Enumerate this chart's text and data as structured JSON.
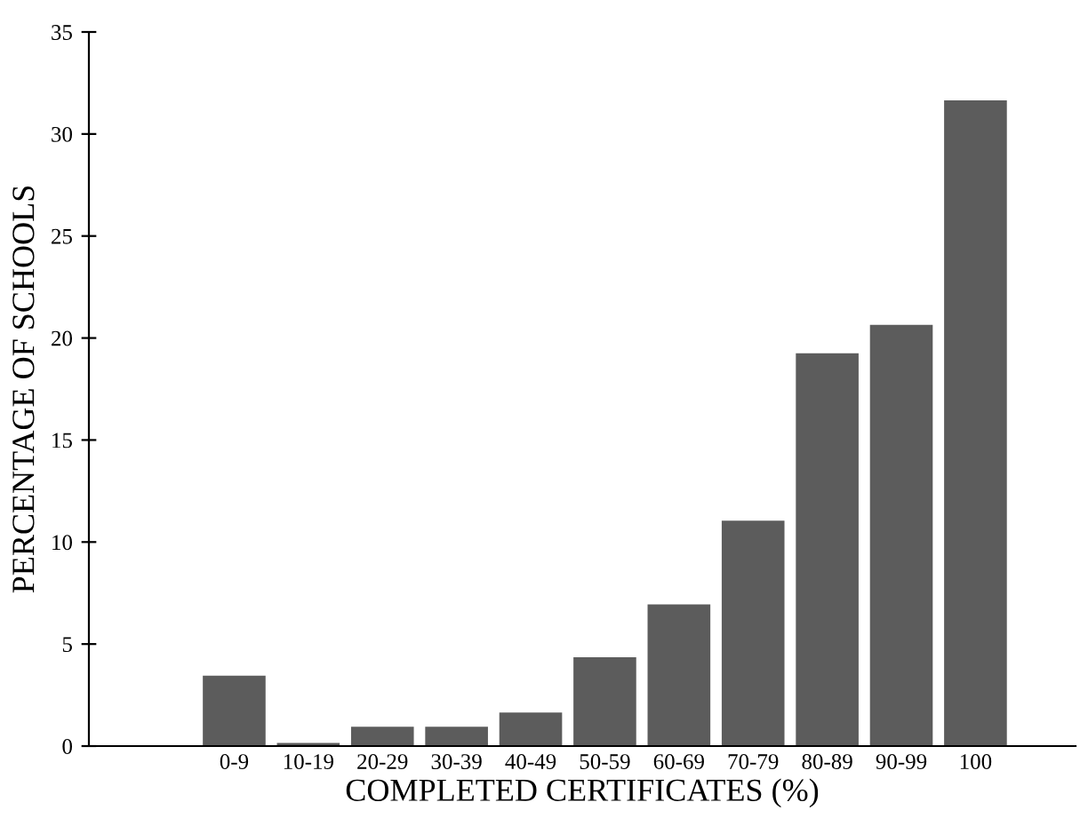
{
  "chart_data": {
    "type": "bar",
    "xlabel": "COMPLETED CERTIFICATES (%)",
    "ylabel": "PERCENTAGE OF SCHOOLS",
    "categories": [
      "0-9",
      "10-19",
      "20-29",
      "30-39",
      "40-49",
      "50-59",
      "60-69",
      "70-79",
      "80-89",
      "90-99",
      "100"
    ],
    "values": [
      3.4,
      0.1,
      0.9,
      0.9,
      1.6,
      4.3,
      6.9,
      11.0,
      19.2,
      20.6,
      31.6
    ],
    "color": "#5c5c5c",
    "ylim": [
      0,
      35
    ],
    "yticks": [
      0,
      5,
      10,
      15,
      20,
      25,
      30,
      35
    ],
    "grid": false
  }
}
